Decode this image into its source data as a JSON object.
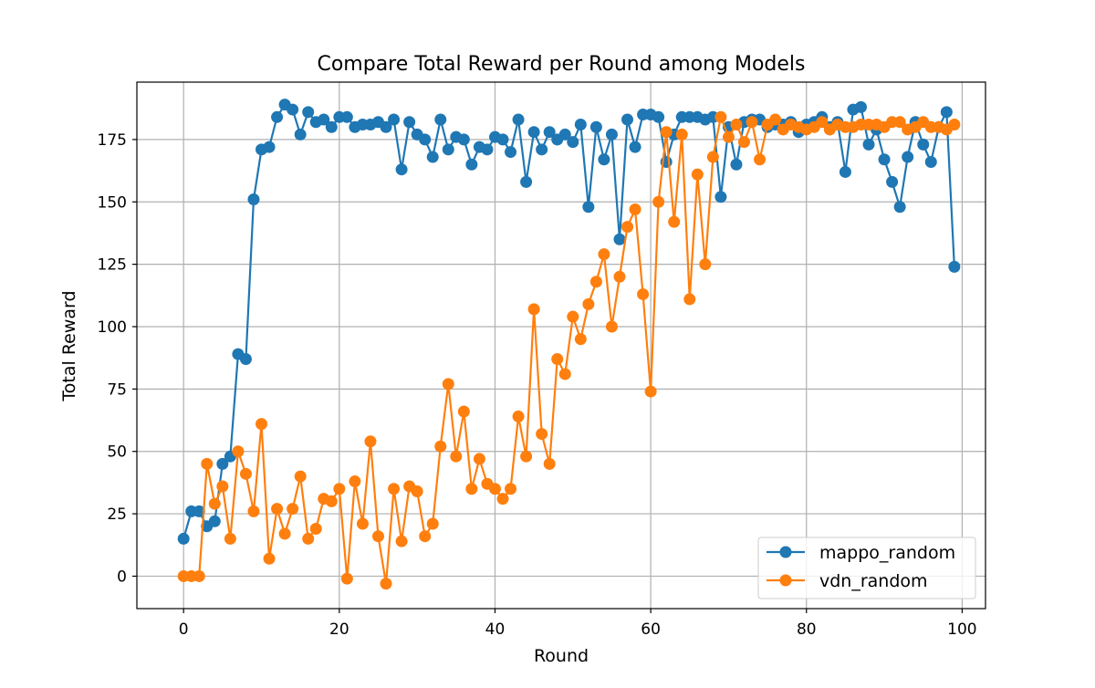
{
  "chart_data": {
    "type": "line",
    "title": "Compare Total Reward per Round among Models",
    "xlabel": "Round",
    "ylabel": "Total Reward",
    "xlim": [
      -6,
      103
    ],
    "ylim": [
      -13,
      198
    ],
    "xticks": [
      0,
      20,
      40,
      60,
      80,
      100
    ],
    "yticks": [
      0,
      25,
      50,
      75,
      100,
      125,
      150,
      175
    ],
    "grid": true,
    "legend_position": "lower-right",
    "x": [
      0,
      1,
      2,
      3,
      4,
      5,
      6,
      7,
      8,
      9,
      10,
      11,
      12,
      13,
      14,
      15,
      16,
      17,
      18,
      19,
      20,
      21,
      22,
      23,
      24,
      25,
      26,
      27,
      28,
      29,
      30,
      31,
      32,
      33,
      34,
      35,
      36,
      37,
      38,
      39,
      40,
      41,
      42,
      43,
      44,
      45,
      46,
      47,
      48,
      49,
      50,
      51,
      52,
      53,
      54,
      55,
      56,
      57,
      58,
      59,
      60,
      61,
      62,
      63,
      64,
      65,
      66,
      67,
      68,
      69,
      70,
      71,
      72,
      73,
      74,
      75,
      76,
      77,
      78,
      79,
      80,
      81,
      82,
      83,
      84,
      85,
      86,
      87,
      88,
      89,
      90,
      91,
      92,
      93,
      94,
      95,
      96,
      97,
      98,
      99
    ],
    "series": [
      {
        "name": "mappo_random",
        "color": "#1f77b4",
        "values": [
          15,
          26,
          26,
          20,
          22,
          45,
          48,
          89,
          87,
          151,
          171,
          172,
          184,
          189,
          187,
          177,
          186,
          182,
          183,
          180,
          184,
          184,
          180,
          181,
          181,
          182,
          180,
          183,
          163,
          182,
          177,
          175,
          168,
          183,
          171,
          176,
          175,
          165,
          172,
          171,
          176,
          175,
          170,
          183,
          158,
          178,
          171,
          178,
          175,
          177,
          174,
          181,
          148,
          180,
          167,
          177,
          135,
          183,
          172,
          185,
          185,
          184,
          166,
          177,
          184,
          184,
          184,
          183,
          184,
          152,
          180,
          165,
          182,
          183,
          183,
          180,
          181,
          181,
          182,
          178,
          181,
          182,
          184,
          180,
          182,
          162,
          187,
          188,
          173,
          179,
          167,
          158,
          148,
          168,
          182,
          173,
          166,
          180,
          186,
          124
        ]
      },
      {
        "name": "vdn_random",
        "color": "#ff7f0e",
        "values": [
          0,
          0,
          0,
          45,
          29,
          36,
          15,
          50,
          41,
          26,
          61,
          7,
          27,
          17,
          27,
          40,
          15,
          19,
          31,
          30,
          35,
          -1,
          38,
          21,
          54,
          16,
          -3,
          35,
          14,
          36,
          34,
          16,
          21,
          52,
          77,
          48,
          66,
          35,
          47,
          37,
          35,
          31,
          35,
          64,
          48,
          107,
          57,
          45,
          87,
          81,
          104,
          95,
          109,
          118,
          129,
          100,
          120,
          140,
          147,
          113,
          74,
          150,
          178,
          142,
          177,
          111,
          161,
          125,
          168,
          184,
          176,
          181,
          174,
          182,
          167,
          181,
          183,
          179,
          181,
          180,
          179,
          180,
          182,
          179,
          181,
          180,
          180,
          181,
          181,
          181,
          180,
          182,
          182,
          179,
          180,
          182,
          180,
          180,
          179,
          181
        ]
      }
    ]
  }
}
